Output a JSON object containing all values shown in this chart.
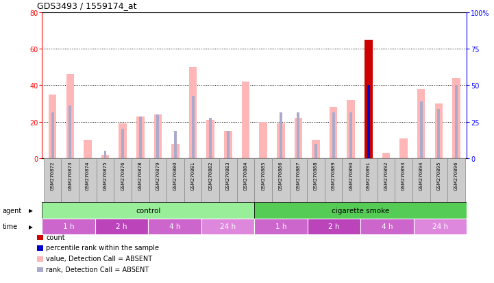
{
  "title": "GDS3493 / 1559174_at",
  "samples": [
    "GSM270872",
    "GSM270873",
    "GSM270874",
    "GSM270875",
    "GSM270876",
    "GSM270878",
    "GSM270879",
    "GSM270880",
    "GSM270881",
    "GSM270882",
    "GSM270883",
    "GSM270884",
    "GSM270885",
    "GSM270886",
    "GSM270887",
    "GSM270888",
    "GSM270889",
    "GSM270890",
    "GSM270891",
    "GSM270892",
    "GSM270893",
    "GSM270894",
    "GSM270895",
    "GSM270896"
  ],
  "value_bars": [
    35,
    46,
    10,
    2,
    19,
    23,
    24,
    8,
    50,
    21,
    15,
    42,
    20,
    19,
    22,
    10,
    28,
    32,
    65,
    3,
    11,
    38,
    30,
    44
  ],
  "rank_bars": [
    25,
    29,
    0,
    4,
    16,
    23,
    24,
    15,
    34,
    22,
    15,
    0,
    0,
    25,
    25,
    8,
    25,
    25,
    40,
    0,
    0,
    31,
    27,
    40
  ],
  "count_bar_index": 18,
  "bar_color_value": "#FFB6B6",
  "bar_color_rank": "#AAAACC",
  "bar_color_count": "#CC0000",
  "bar_color_count_rank": "#0000CC",
  "ylim_left": [
    0,
    80
  ],
  "ylim_right": [
    0,
    100
  ],
  "yticks_left": [
    0,
    20,
    40,
    60,
    80
  ],
  "yticks_right": [
    0,
    25,
    50,
    75,
    100
  ],
  "ytick_labels_right": [
    "0",
    "25",
    "50",
    "75",
    "100%"
  ],
  "grid_values": [
    20,
    40,
    60
  ],
  "time_boundaries": [
    0,
    3,
    6,
    9,
    12,
    15,
    18,
    21,
    24
  ],
  "time_labels": [
    "1 h",
    "2 h",
    "4 h",
    "24 h",
    "1 h",
    "2 h",
    "4 h",
    "24 h"
  ],
  "time_colors": [
    "#CC66CC",
    "#BB44BB",
    "#CC66CC",
    "#DD88DD",
    "#CC66CC",
    "#BB44BB",
    "#CC66CC",
    "#DD88DD"
  ],
  "control_color": "#99EE99",
  "smoke_color": "#55CC55",
  "label_box_color": "#CCCCCC",
  "label_box_border": "#888888",
  "legend_items": [
    {
      "label": "count",
      "color": "#CC0000"
    },
    {
      "label": "percentile rank within the sample",
      "color": "#0000CC"
    },
    {
      "label": "value, Detection Call = ABSENT",
      "color": "#FFB6B6"
    },
    {
      "label": "rank, Detection Call = ABSENT",
      "color": "#AAAACC"
    }
  ]
}
